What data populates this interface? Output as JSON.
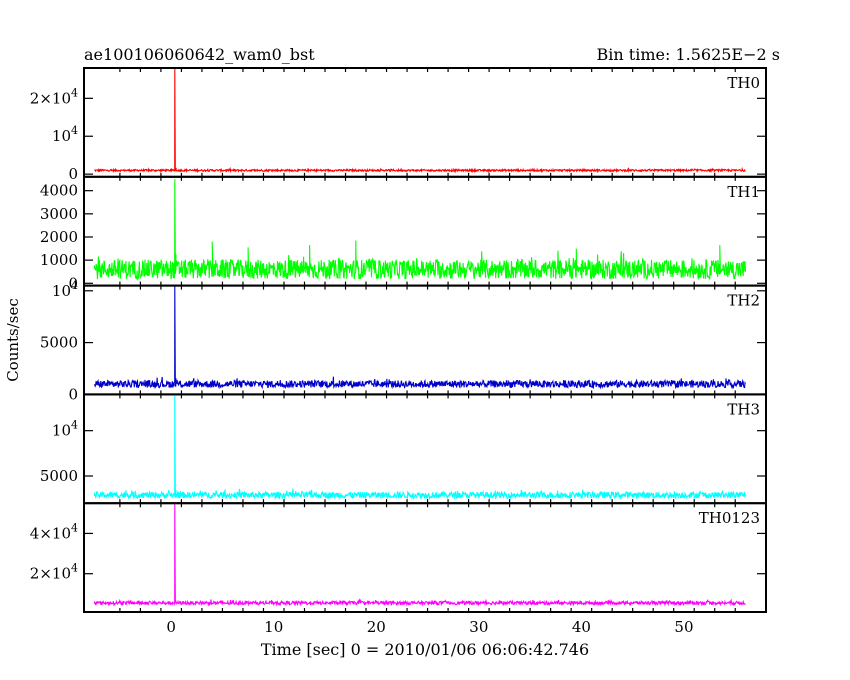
{
  "header": {
    "title": "ae100106060642_wam0_bst",
    "bin_time": "Bin time: 1.5625E−2 s"
  },
  "chart_data": {
    "type": "line",
    "title": "ae100106060642_wam0_bst",
    "subtitle": "Bin time: 1.5625E−2 s",
    "xlabel": "Time [sec] 0 = 2010/01/06 06:06:42.746",
    "ylabel": "Counts/sec",
    "xlim": [
      -8.5,
      58
    ],
    "x_ticks": [
      0,
      10,
      20,
      30,
      40,
      50
    ],
    "x_tick_labels": [
      "0",
      "10",
      "20",
      "30",
      "40",
      "50"
    ],
    "data_x_range": [
      -7.5,
      56
    ],
    "bin_time": 0.015625,
    "grid": false,
    "panels": [
      {
        "name": "TH0",
        "color": "#ff0000",
        "ylim": [
          -700,
          28000
        ],
        "yticks": [
          0,
          10000,
          20000
        ],
        "yticklabels": [
          "0",
          "10^4",
          "2×10^4"
        ],
        "baseline": 1000,
        "noise": 350,
        "spikes": [
          {
            "x": 0.35,
            "y": 28000
          }
        ],
        "features": []
      },
      {
        "name": "TH1",
        "color": "#00ff00",
        "ylim": [
          -100,
          4600
        ],
        "yticks": [
          0,
          1000,
          2000,
          3000,
          4000
        ],
        "yticklabels": [
          "0",
          "1000",
          "2000",
          "3000",
          "4000"
        ],
        "baseline": 600,
        "noise": 600,
        "spikes": [
          {
            "x": 0.35,
            "y": 4500
          }
        ],
        "features": [
          {
            "x": 4.0,
            "y": 1800
          },
          {
            "x": 18.0,
            "y": 1850
          },
          {
            "x": 13.5,
            "y": 1650
          },
          {
            "x": 7.5,
            "y": 1550
          },
          {
            "x": 39.5,
            "y": 1500
          },
          {
            "x": 53.5,
            "y": 1650
          }
        ]
      },
      {
        "name": "TH2",
        "color": "#0000cc",
        "ylim": [
          0,
          10500
        ],
        "yticks": [
          0,
          5000,
          10000
        ],
        "yticklabels": [
          "0",
          "5000",
          "10^4"
        ],
        "baseline": 1000,
        "noise": 500,
        "spikes": [
          {
            "x": 0.35,
            "y": 10500
          }
        ],
        "features": []
      },
      {
        "name": "TH3",
        "color": "#00ffff",
        "ylim": [
          2000,
          14000
        ],
        "yticks": [
          5000,
          10000
        ],
        "yticklabels": [
          "5000",
          "10^4"
        ],
        "baseline": 2900,
        "noise": 500,
        "spikes": [
          {
            "x": 0.35,
            "y": 14000
          }
        ],
        "features": []
      },
      {
        "name": "TH0123",
        "color": "#ff00ff",
        "ylim": [
          1000,
          55000
        ],
        "yticks": [
          20000,
          40000
        ],
        "yticklabels": [
          "2×10^4",
          "4×10^4"
        ],
        "baseline": 5500,
        "noise": 1200,
        "spikes": [
          {
            "x": 0.35,
            "y": 55000
          }
        ],
        "features": []
      }
    ]
  }
}
